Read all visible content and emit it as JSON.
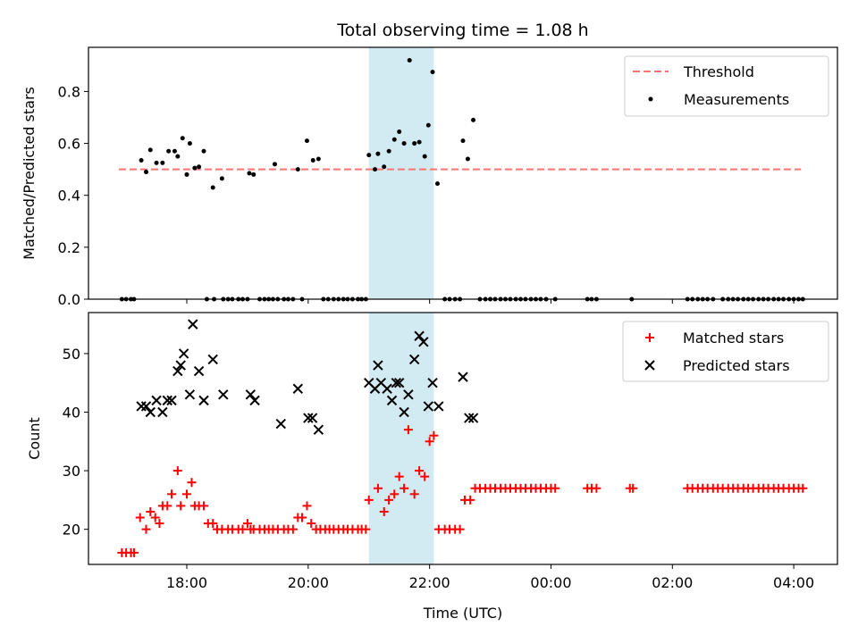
{
  "chart_data": {
    "title": "Total observing time = 1.08 h",
    "xlabel": "Time (UTC)",
    "x_unit": "hours (UTC clock, values past 24 wrap to next day)",
    "x_ticks": [
      {
        "value": 18,
        "label": "18:00"
      },
      {
        "value": 20,
        "label": "20:00"
      },
      {
        "value": 22,
        "label": "22:00"
      },
      {
        "value": 24,
        "label": "00:00"
      },
      {
        "value": 26,
        "label": "02:00"
      },
      {
        "value": 28,
        "label": "04:00"
      }
    ],
    "xlim": [
      16.38,
      28.72
    ],
    "shaded_band": {
      "x0": 21.0,
      "x1": 22.07,
      "color": "#add8e6"
    },
    "top": {
      "type": "scatter",
      "ylabel": "Matched/Predicted stars",
      "ylim": [
        0,
        0.97
      ],
      "y_ticks": [
        0.0,
        0.2,
        0.4,
        0.6,
        0.8
      ],
      "y_tick_labels": [
        "0.0",
        "0.2",
        "0.4",
        "0.6",
        "0.8"
      ],
      "threshold": {
        "name": "Threshold",
        "y": 0.5,
        "x0": 16.88,
        "x1": 28.12,
        "color": "#ff7373"
      },
      "series": [
        {
          "name": "Measurements",
          "color": "#000000",
          "x": [
            17.25,
            17.33,
            17.4,
            17.5,
            17.6,
            17.7,
            17.8,
            17.85,
            17.93,
            18.0,
            18.05,
            18.13,
            18.2,
            18.28,
            18.43,
            18.58,
            19.03,
            19.1,
            19.45,
            19.83,
            19.98,
            20.08,
            20.17,
            21.0,
            21.1,
            21.15,
            21.25,
            21.33,
            21.42,
            21.5,
            21.58,
            21.67,
            21.75,
            21.83,
            21.92,
            21.98,
            22.05,
            22.13,
            22.55,
            22.63,
            22.72
          ],
          "y": [
            0.535,
            0.49,
            0.575,
            0.525,
            0.525,
            0.57,
            0.57,
            0.55,
            0.62,
            0.48,
            0.6,
            0.505,
            0.51,
            0.57,
            0.43,
            0.465,
            0.485,
            0.48,
            0.52,
            0.5,
            0.61,
            0.535,
            0.54,
            0.555,
            0.5,
            0.56,
            0.51,
            0.57,
            0.615,
            0.645,
            0.6,
            0.92,
            0.6,
            0.605,
            0.55,
            0.67,
            0.875,
            0.445,
            0.61,
            0.54,
            0.69
          ]
        },
        {
          "name": "zero-ratio measurements",
          "color": "#000000",
          "x": [
            16.93,
            17.0,
            17.08,
            17.13,
            18.33,
            18.45,
            18.6,
            18.68,
            18.75,
            18.85,
            18.92,
            19.0,
            19.2,
            19.28,
            19.35,
            19.42,
            19.5,
            19.6,
            19.67,
            19.75,
            19.9,
            20.25,
            20.33,
            20.42,
            20.5,
            20.58,
            20.65,
            20.73,
            20.82,
            20.88,
            20.95,
            22.25,
            22.33,
            22.42,
            22.5,
            22.83,
            22.92,
            23.0,
            23.08,
            23.17,
            23.25,
            23.33,
            23.42,
            23.5,
            23.58,
            23.67,
            23.75,
            23.83,
            23.92,
            24.07,
            24.6,
            24.67,
            24.75,
            25.33,
            26.25,
            26.33,
            26.42,
            26.5,
            26.58,
            26.67,
            26.83,
            26.92,
            27.0,
            27.08,
            27.17,
            27.25,
            27.33,
            27.42,
            27.5,
            27.58,
            27.67,
            27.75,
            27.83,
            27.92,
            28.0,
            28.08,
            28.15
          ],
          "y_const": 0
        }
      ],
      "legend": [
        "Threshold",
        "Measurements"
      ],
      "legend_position": "top-right"
    },
    "bottom": {
      "type": "scatter",
      "ylabel": "Count",
      "ylim": [
        14,
        57
      ],
      "y_ticks": [
        20,
        30,
        40,
        50
      ],
      "y_tick_labels": [
        "20",
        "30",
        "40",
        "50"
      ],
      "series": [
        {
          "name": "Matched stars",
          "color": "#ff0000",
          "marker": "plus",
          "x": [
            16.93,
            17.0,
            17.08,
            17.13,
            17.23,
            17.33,
            17.4,
            17.48,
            17.55,
            17.6,
            17.68,
            17.75,
            17.85,
            17.9,
            18.0,
            18.08,
            18.13,
            18.2,
            18.28,
            18.35,
            18.43,
            18.5,
            18.58,
            18.68,
            18.75,
            18.85,
            18.92,
            19.0,
            19.05,
            19.1,
            19.2,
            19.28,
            19.35,
            19.42,
            19.5,
            19.6,
            19.67,
            19.75,
            19.83,
            19.9,
            19.98,
            20.05,
            20.13,
            20.2,
            20.28,
            20.35,
            20.42,
            20.5,
            20.58,
            20.65,
            20.73,
            20.82,
            20.88,
            20.95,
            21.0,
            21.15,
            21.25,
            21.33,
            21.42,
            21.5,
            21.58,
            21.65,
            21.75,
            21.83,
            21.92,
            22.0,
            22.07,
            22.15,
            22.25,
            22.33,
            22.42,
            22.5,
            22.58,
            22.67,
            22.75,
            22.83,
            22.92,
            23.0,
            23.08,
            23.17,
            23.25,
            23.33,
            23.42,
            23.5,
            23.58,
            23.67,
            23.75,
            23.83,
            23.92,
            24.0,
            24.07,
            24.6,
            24.67,
            24.75,
            25.3,
            25.35,
            26.25,
            26.33,
            26.42,
            26.5,
            26.58,
            26.67,
            26.75,
            26.83,
            26.92,
            27.0,
            27.08,
            27.17,
            27.25,
            27.33,
            27.42,
            27.5,
            27.58,
            27.67,
            27.75,
            27.83,
            27.92,
            28.0,
            28.08,
            28.15
          ],
          "y": [
            16,
            16,
            16,
            16,
            22,
            20,
            23,
            22,
            21,
            24,
            24,
            26,
            30,
            24,
            26,
            28,
            24,
            24,
            24,
            21,
            21,
            20,
            20,
            20,
            20,
            20,
            20,
            21,
            20,
            20,
            20,
            20,
            20,
            20,
            20,
            20,
            20,
            20,
            22,
            22,
            24,
            21,
            20,
            20,
            20,
            20,
            20,
            20,
            20,
            20,
            20,
            20,
            20,
            20,
            25,
            27,
            23,
            25,
            26,
            29,
            27,
            37,
            26,
            30,
            29,
            35,
            36,
            20,
            20,
            20,
            20,
            20,
            25,
            25,
            27,
            27,
            27,
            27,
            27,
            27,
            27,
            27,
            27,
            27,
            27,
            27,
            27,
            27,
            27,
            27,
            27,
            27,
            27,
            27,
            27,
            27,
            27,
            27,
            27,
            27,
            27,
            27,
            27,
            27,
            27,
            27,
            27,
            27,
            27,
            27,
            27,
            27,
            27,
            27,
            27,
            27,
            27,
            27,
            27,
            27
          ]
        },
        {
          "name": "Predicted stars",
          "color": "#000000",
          "marker": "x",
          "x": [
            17.25,
            17.33,
            17.4,
            17.5,
            17.6,
            17.68,
            17.75,
            17.85,
            17.9,
            17.95,
            18.05,
            18.1,
            18.2,
            18.28,
            18.43,
            18.6,
            19.05,
            19.12,
            19.55,
            19.83,
            20.0,
            20.07,
            20.17,
            21.0,
            21.1,
            21.15,
            21.2,
            21.3,
            21.38,
            21.45,
            21.5,
            21.58,
            21.65,
            21.75,
            21.83,
            21.9,
            21.98,
            22.05,
            22.15,
            22.55,
            22.65,
            22.72
          ],
          "y": [
            41,
            41,
            40,
            42,
            40,
            42,
            42,
            47,
            48,
            50,
            43,
            55,
            47,
            42,
            49,
            43,
            43,
            42,
            38,
            44,
            39,
            39,
            37,
            45,
            44,
            48,
            45,
            44,
            42,
            45,
            45,
            40,
            43,
            49,
            53,
            52,
            41,
            45,
            41,
            46,
            39,
            39
          ]
        }
      ],
      "legend": [
        "Matched stars",
        "Predicted stars"
      ],
      "legend_position": "top-right"
    }
  }
}
